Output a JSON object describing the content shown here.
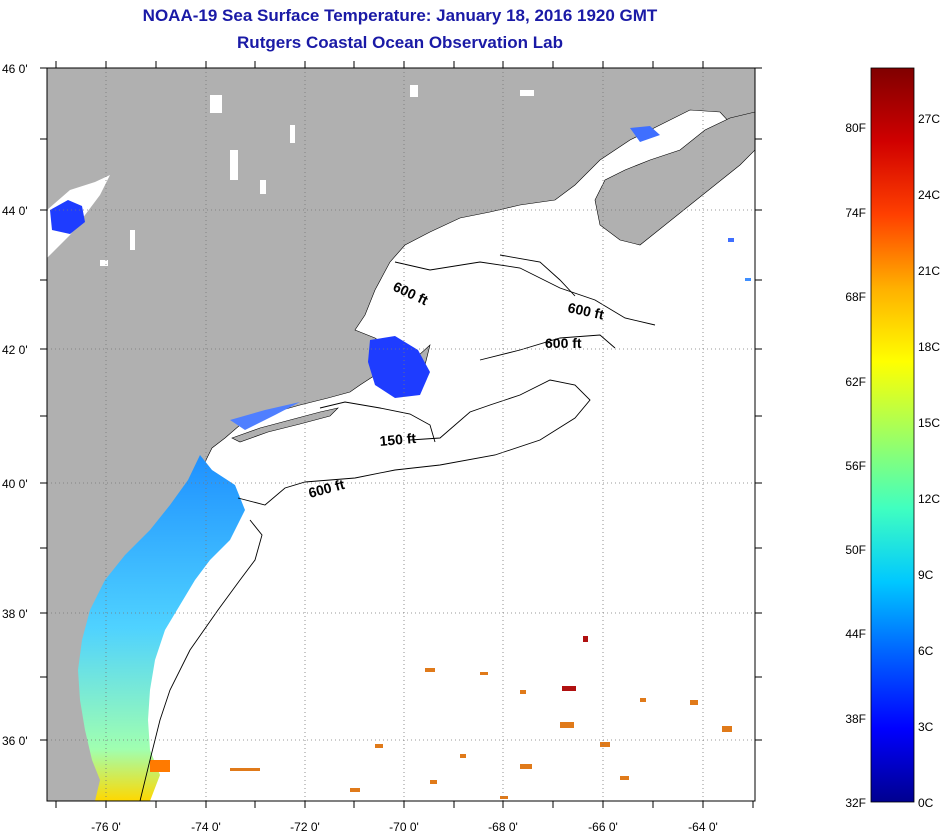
{
  "title": {
    "line1": "NOAA-19 Sea Surface Temperature:  January 18, 2016 1920 GMT",
    "line2": "Rutgers Coastal Ocean Observation Lab"
  },
  "map": {
    "lat_labels": [
      "46 0'",
      "44 0'",
      "42 0'",
      "40 0'",
      "38 0'",
      "36 0'"
    ],
    "lon_labels": [
      "-76 0'",
      "-74 0'",
      "-72 0'",
      "-70 0'",
      "-68 0'",
      "-66 0'",
      "-64 0'"
    ],
    "depth_labels": [
      "600 ft",
      "600 ft",
      "600 ft",
      "150 ft",
      "600 ft"
    ],
    "colors": {
      "land": "#b0b0b0",
      "ocean": "#ffffff",
      "grid": "#777777"
    }
  },
  "colorbar": {
    "fahrenheit_labels": [
      "80F",
      "74F",
      "68F",
      "62F",
      "56F",
      "50F",
      "44F",
      "38F",
      "32F"
    ],
    "celsius_labels": [
      "27C",
      "24C",
      "21C",
      "18C",
      "15C",
      "12C",
      "9C",
      "6C",
      "3C",
      "0C"
    ],
    "gradient": [
      "#00008f",
      "#0000ff",
      "#0060ff",
      "#00c8ff",
      "#40ffc0",
      "#a0ff60",
      "#ffff00",
      "#ffb000",
      "#ff4000",
      "#d00000",
      "#800000"
    ]
  }
}
